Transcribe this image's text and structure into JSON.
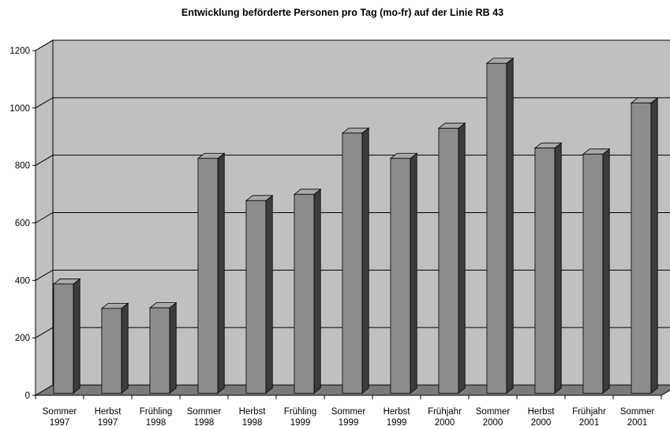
{
  "chart_data": {
    "type": "bar",
    "title": "Entwicklung beförderte Personen pro Tag (mo-fr) auf der Linie RB 43",
    "xlabel": "",
    "ylabel": "",
    "categories": [
      [
        "Sommer",
        "1997"
      ],
      [
        "Herbst",
        "1997"
      ],
      [
        "Frühling",
        "1998"
      ],
      [
        "Sommer",
        "1998"
      ],
      [
        "Herbst",
        "1998"
      ],
      [
        "Frühling",
        "1999"
      ],
      [
        "Sommer",
        "1999"
      ],
      [
        "Herbst",
        "1999"
      ],
      [
        "Frühjahr",
        "2000"
      ],
      [
        "Sommer",
        "2000"
      ],
      [
        "Herbst",
        "2000"
      ],
      [
        "Frühjahr",
        "2001"
      ],
      [
        "Sommer",
        "2001"
      ]
    ],
    "values": [
      380,
      295,
      297,
      817,
      670,
      692,
      905,
      817,
      922,
      1148,
      853,
      832,
      1010
    ],
    "ylim": [
      0,
      1200
    ],
    "yticks": [
      "0",
      "200",
      "400",
      "600",
      "800",
      "1000",
      "1200"
    ],
    "grid": true,
    "legend": "none",
    "style": "3d",
    "colors": {
      "bar_front": "#8c8c8c",
      "bar_top": "#a8a8a8",
      "bar_side": "#3c3c3c",
      "plot_wall": "#c0c0c0",
      "floor": "#7a7a7a",
      "gridline": "#000000"
    }
  }
}
